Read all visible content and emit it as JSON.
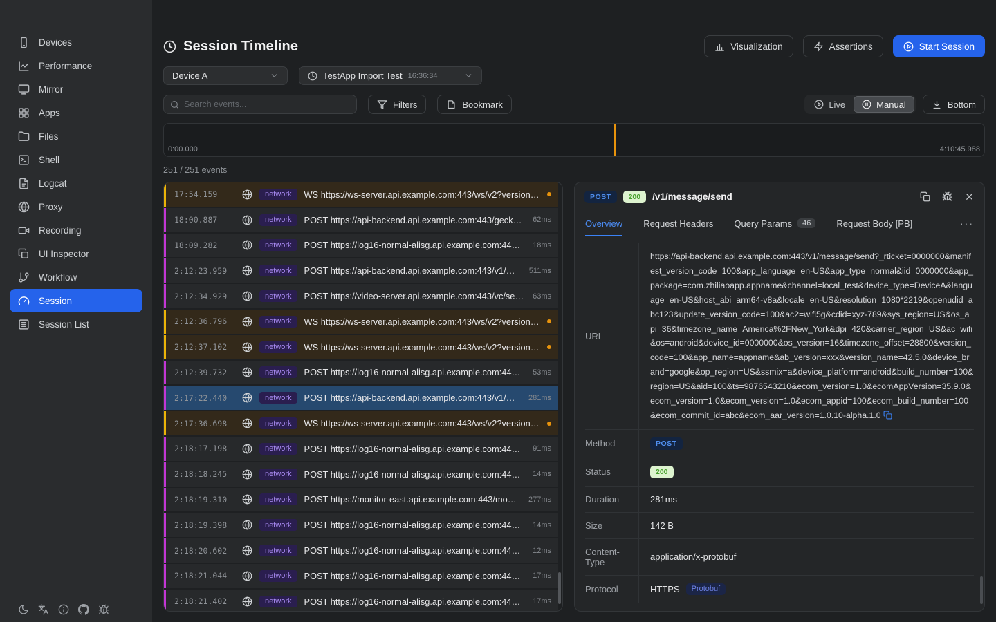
{
  "colors": {
    "accent_blue": "#2563eb",
    "ws_event": "#eab308",
    "post_event": "#c236d4",
    "playhead_orange": "#e8930c",
    "status_green_bg": "#ddf3cf",
    "status_green_text": "#47a02c",
    "network_tag_bg": "#2a1e4f",
    "network_tag_text": "#a98bf2",
    "selected_row": "#26496f"
  },
  "sidebar": {
    "items": [
      {
        "label": "Devices",
        "icon": "smartphone"
      },
      {
        "label": "Performance",
        "icon": "line-chart"
      },
      {
        "label": "Mirror",
        "icon": "monitor"
      },
      {
        "label": "Apps",
        "icon": "grid"
      },
      {
        "label": "Files",
        "icon": "folder"
      },
      {
        "label": "Shell",
        "icon": "terminal"
      },
      {
        "label": "Logcat",
        "icon": "file-text"
      },
      {
        "label": "Proxy",
        "icon": "globe"
      },
      {
        "label": "Recording",
        "icon": "video"
      },
      {
        "label": "UI Inspector",
        "icon": "layers"
      },
      {
        "label": "Workflow",
        "icon": "git-branch"
      },
      {
        "label": "Session",
        "icon": "gauge",
        "active": true
      },
      {
        "label": "Session List",
        "icon": "list-box"
      }
    ],
    "footer_icons": [
      "moon",
      "languages",
      "info",
      "github",
      "bug"
    ]
  },
  "header": {
    "title": "Session Timeline",
    "title_icon": "clock",
    "device_select": {
      "value": "Device A"
    },
    "session_select": {
      "value": "TestApp Import Test",
      "time": "16:36:34",
      "icon": "clock"
    },
    "buttons": {
      "visualization": {
        "label": "Visualization",
        "icon": "bar-chart"
      },
      "assertions": {
        "label": "Assertions",
        "icon": "zap"
      },
      "start_session": {
        "label": "Start Session",
        "icon": "play-circle"
      }
    }
  },
  "toolbar": {
    "search_placeholder": "Search events...",
    "filters_label": "Filters",
    "bookmark_label": "Bookmark",
    "live_label": "Live",
    "manual_label": "Manual",
    "bottom_label": "Bottom",
    "mode_selected": "Manual"
  },
  "timeline": {
    "start_label": "0:00.000",
    "end_label": "4:10:45.988",
    "playhead_percent": 54.9
  },
  "events": {
    "count": "251 / 251 events",
    "tag_label": "network",
    "rows": [
      {
        "time": "17:54.159",
        "text": "WS https://ws-server.api.example.com:443/ws/v2?version_cod...",
        "duration": "",
        "kind": "ws",
        "dot": true
      },
      {
        "time": "18:00.887",
        "text": "POST https://api-backend.api.example.com:443/gecko/serv...",
        "duration": "62ms",
        "kind": "post"
      },
      {
        "time": "18:09.282",
        "text": "POST https://log16-normal-alisg.api.example.com:443/servi...",
        "duration": "18ms",
        "kind": "post"
      },
      {
        "time": "2:12:23.959",
        "text": "POST https://api-backend.api.example.com:443/v1/messag...",
        "duration": "511ms",
        "kind": "post"
      },
      {
        "time": "2:12:34.929",
        "text": "POST https://video-server.api.example.com:443/vc/setting?...",
        "duration": "63ms",
        "kind": "post"
      },
      {
        "time": "2:12:36.796",
        "text": "WS https://ws-server.api.example.com:443/ws/v2?version_cod...",
        "duration": "",
        "kind": "ws",
        "dot": true
      },
      {
        "time": "2:12:37.102",
        "text": "WS https://ws-server.api.example.com:443/ws/v2?version_cod...",
        "duration": "",
        "kind": "ws",
        "dot": true
      },
      {
        "time": "2:12:39.732",
        "text": "POST https://log16-normal-alisg.api.example.com:443/serv...",
        "duration": "53ms",
        "kind": "post"
      },
      {
        "time": "2:17:22.440",
        "text": "POST https://api-backend.api.example.com:443/v1/messa...",
        "duration": "281ms",
        "kind": "post",
        "selected": true
      },
      {
        "time": "2:17:36.698",
        "text": "WS https://ws-server.api.example.com:443/ws/v2?version_cod...",
        "duration": "",
        "kind": "ws",
        "dot": true
      },
      {
        "time": "2:18:17.198",
        "text": "POST https://log16-normal-alisg.api.example.com:443/servi...",
        "duration": "91ms",
        "kind": "post"
      },
      {
        "time": "2:18:18.245",
        "text": "POST https://log16-normal-alisg.api.example.com:443/servi...",
        "duration": "14ms",
        "kind": "post"
      },
      {
        "time": "2:18:19.310",
        "text": "POST https://monitor-east.api.example.com:443/monitor/c...",
        "duration": "277ms",
        "kind": "post"
      },
      {
        "time": "2:18:19.398",
        "text": "POST https://log16-normal-alisg.api.example.com:443/servi...",
        "duration": "14ms",
        "kind": "post"
      },
      {
        "time": "2:18:20.602",
        "text": "POST https://log16-normal-alisg.api.example.com:443/servi...",
        "duration": "12ms",
        "kind": "post"
      },
      {
        "time": "2:18:21.044",
        "text": "POST https://log16-normal-alisg.api.example.com:443/servi...",
        "duration": "17ms",
        "kind": "post"
      },
      {
        "time": "2:18:21.402",
        "text": "POST https://log16-normal-alisg.api.example.com:443/servi...",
        "duration": "17ms",
        "kind": "post"
      }
    ]
  },
  "detail": {
    "method": "POST",
    "status": "200",
    "path": "/v1/message/send",
    "header_icons": [
      "copy",
      "bug",
      "x"
    ],
    "tabs": [
      {
        "label": "Overview",
        "active": true
      },
      {
        "label": "Request Headers"
      },
      {
        "label": "Query Params",
        "badge": "46"
      },
      {
        "label": "Request Body [PB]"
      }
    ],
    "tabs_overflow": "···",
    "fields": [
      {
        "label": "URL",
        "type": "url",
        "value": "https://api-backend.api.example.com:443/v1/message/send?_rticket=0000000&manifest_version_code=100&app_language=en-US&app_type=normal&iid=0000000&app_package=com.zhiliaoapp.appname&channel=local_test&device_type=DeviceA&language=en-US&host_abi=arm64-v8a&locale=en-US&resolution=1080*2219&openudid=abc123&update_version_code=100&ac2=wifi5g&cdid=xyz-789&sys_region=US&os_api=36&timezone_name=America%2FNew_York&dpi=420&carrier_region=US&ac=wifi&os=android&device_id=0000000&os_version=16&timezone_offset=28800&version_code=100&app_name=appname&ab_version=xxx&version_name=42.5.0&device_brand=google&op_region=US&ssmix=a&device_platform=android&build_number=100&region=US&aid=100&ts=9876543210&ecom_version=1.0&ecomAppVersion=35.9.0&ecom_version=1.0&ecom_version=1.0&ecom_appid=100&ecom_build_number=100&ecom_commit_id=abc&ecom_aar_version=1.0.10-alpha.1.0"
      },
      {
        "label": "Method",
        "type": "method",
        "value": "POST"
      },
      {
        "label": "Status",
        "type": "status",
        "value": "200"
      },
      {
        "label": "Duration",
        "type": "text",
        "value": "281ms"
      },
      {
        "label": "Size",
        "type": "text",
        "value": "142 B"
      },
      {
        "label": "Content-Type",
        "type": "text",
        "value": "application/x-protobuf"
      },
      {
        "label": "Protocol",
        "type": "protocol",
        "value": "HTTPS",
        "badge": "Protobuf"
      }
    ]
  }
}
